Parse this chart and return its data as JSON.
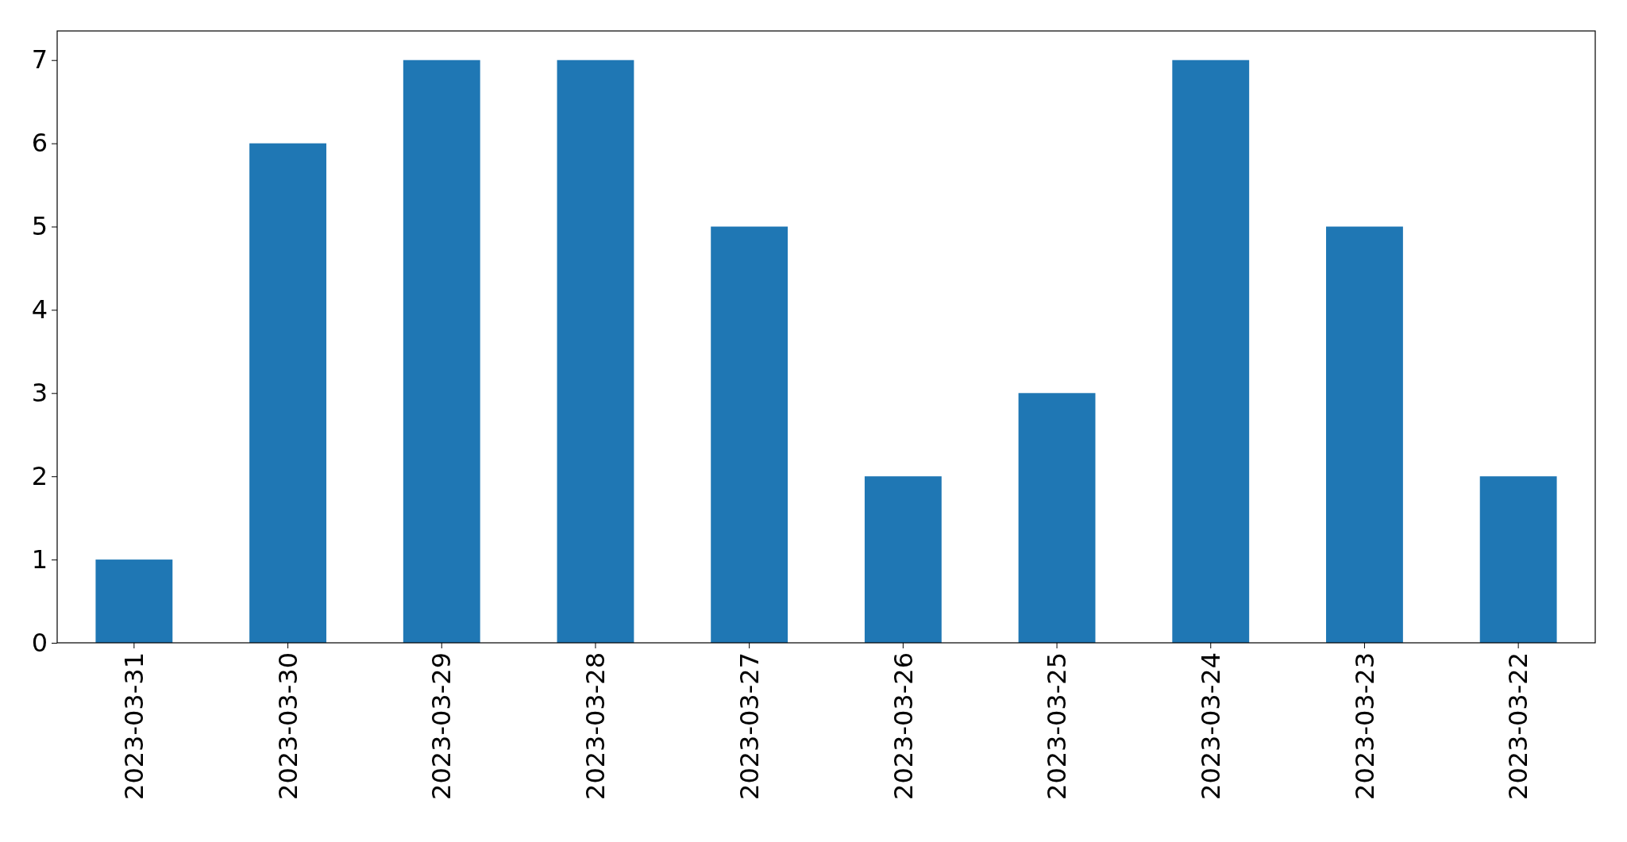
{
  "chart_data": {
    "type": "bar",
    "categories": [
      "2023-03-31",
      "2023-03-30",
      "2023-03-29",
      "2023-03-28",
      "2023-03-27",
      "2023-03-26",
      "2023-03-25",
      "2023-03-24",
      "2023-03-23",
      "2023-03-22"
    ],
    "values": [
      1,
      6,
      7,
      7,
      5,
      2,
      3,
      7,
      5,
      2
    ],
    "color": "#1f77b4",
    "ylim": [
      0,
      7.35
    ],
    "yticks": [
      0,
      1,
      2,
      3,
      4,
      5,
      6,
      7
    ],
    "grid": false
  }
}
